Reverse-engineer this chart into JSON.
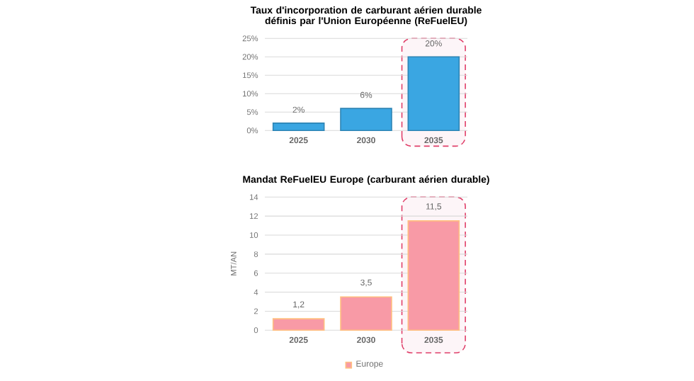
{
  "chart_data": [
    {
      "type": "bar",
      "title": "Taux d'incorporation de carburant aérien durable définis par l'Union Européenne (ReFuelEU)",
      "categories": [
        "2025",
        "2030",
        "2035"
      ],
      "series": [
        {
          "color": "#3aa6e2",
          "values": [
            2,
            6,
            20
          ],
          "value_labels": [
            "2%",
            "6%",
            "20%"
          ]
        }
      ],
      "ylim": [
        0,
        25
      ],
      "yticks": [
        {
          "value": 0,
          "label": "0%"
        },
        {
          "value": 5,
          "label": "5%"
        },
        {
          "value": 10,
          "label": "10%"
        },
        {
          "value": 15,
          "label": "15%"
        },
        {
          "value": 20,
          "label": "20%"
        },
        {
          "value": 25,
          "label": "25%"
        }
      ],
      "grid": "y",
      "bands": [
        {
          "axis": "x",
          "from": "2035",
          "to": "2035",
          "color": "#e0406a"
        }
      ]
    },
    {
      "type": "bar",
      "title": "Mandat ReFuelEU Europe (carburant aérien durable)",
      "ylabel": "MT/AN",
      "categories": [
        "2025",
        "2030",
        "2035"
      ],
      "series": [
        {
          "name": "Europe",
          "color": "#f89aa6",
          "values": [
            1.2,
            3.5,
            11.5
          ],
          "value_labels": [
            "1,2",
            "3,5",
            "11,5"
          ]
        }
      ],
      "ylim": [
        0,
        14
      ],
      "yticks": [
        0,
        2,
        4,
        6,
        8,
        10,
        12,
        14
      ],
      "grid": "y",
      "legend": "bottom",
      "bands": [
        {
          "axis": "x",
          "from": "2035",
          "to": "2035",
          "color": "#e0406a"
        }
      ]
    }
  ]
}
